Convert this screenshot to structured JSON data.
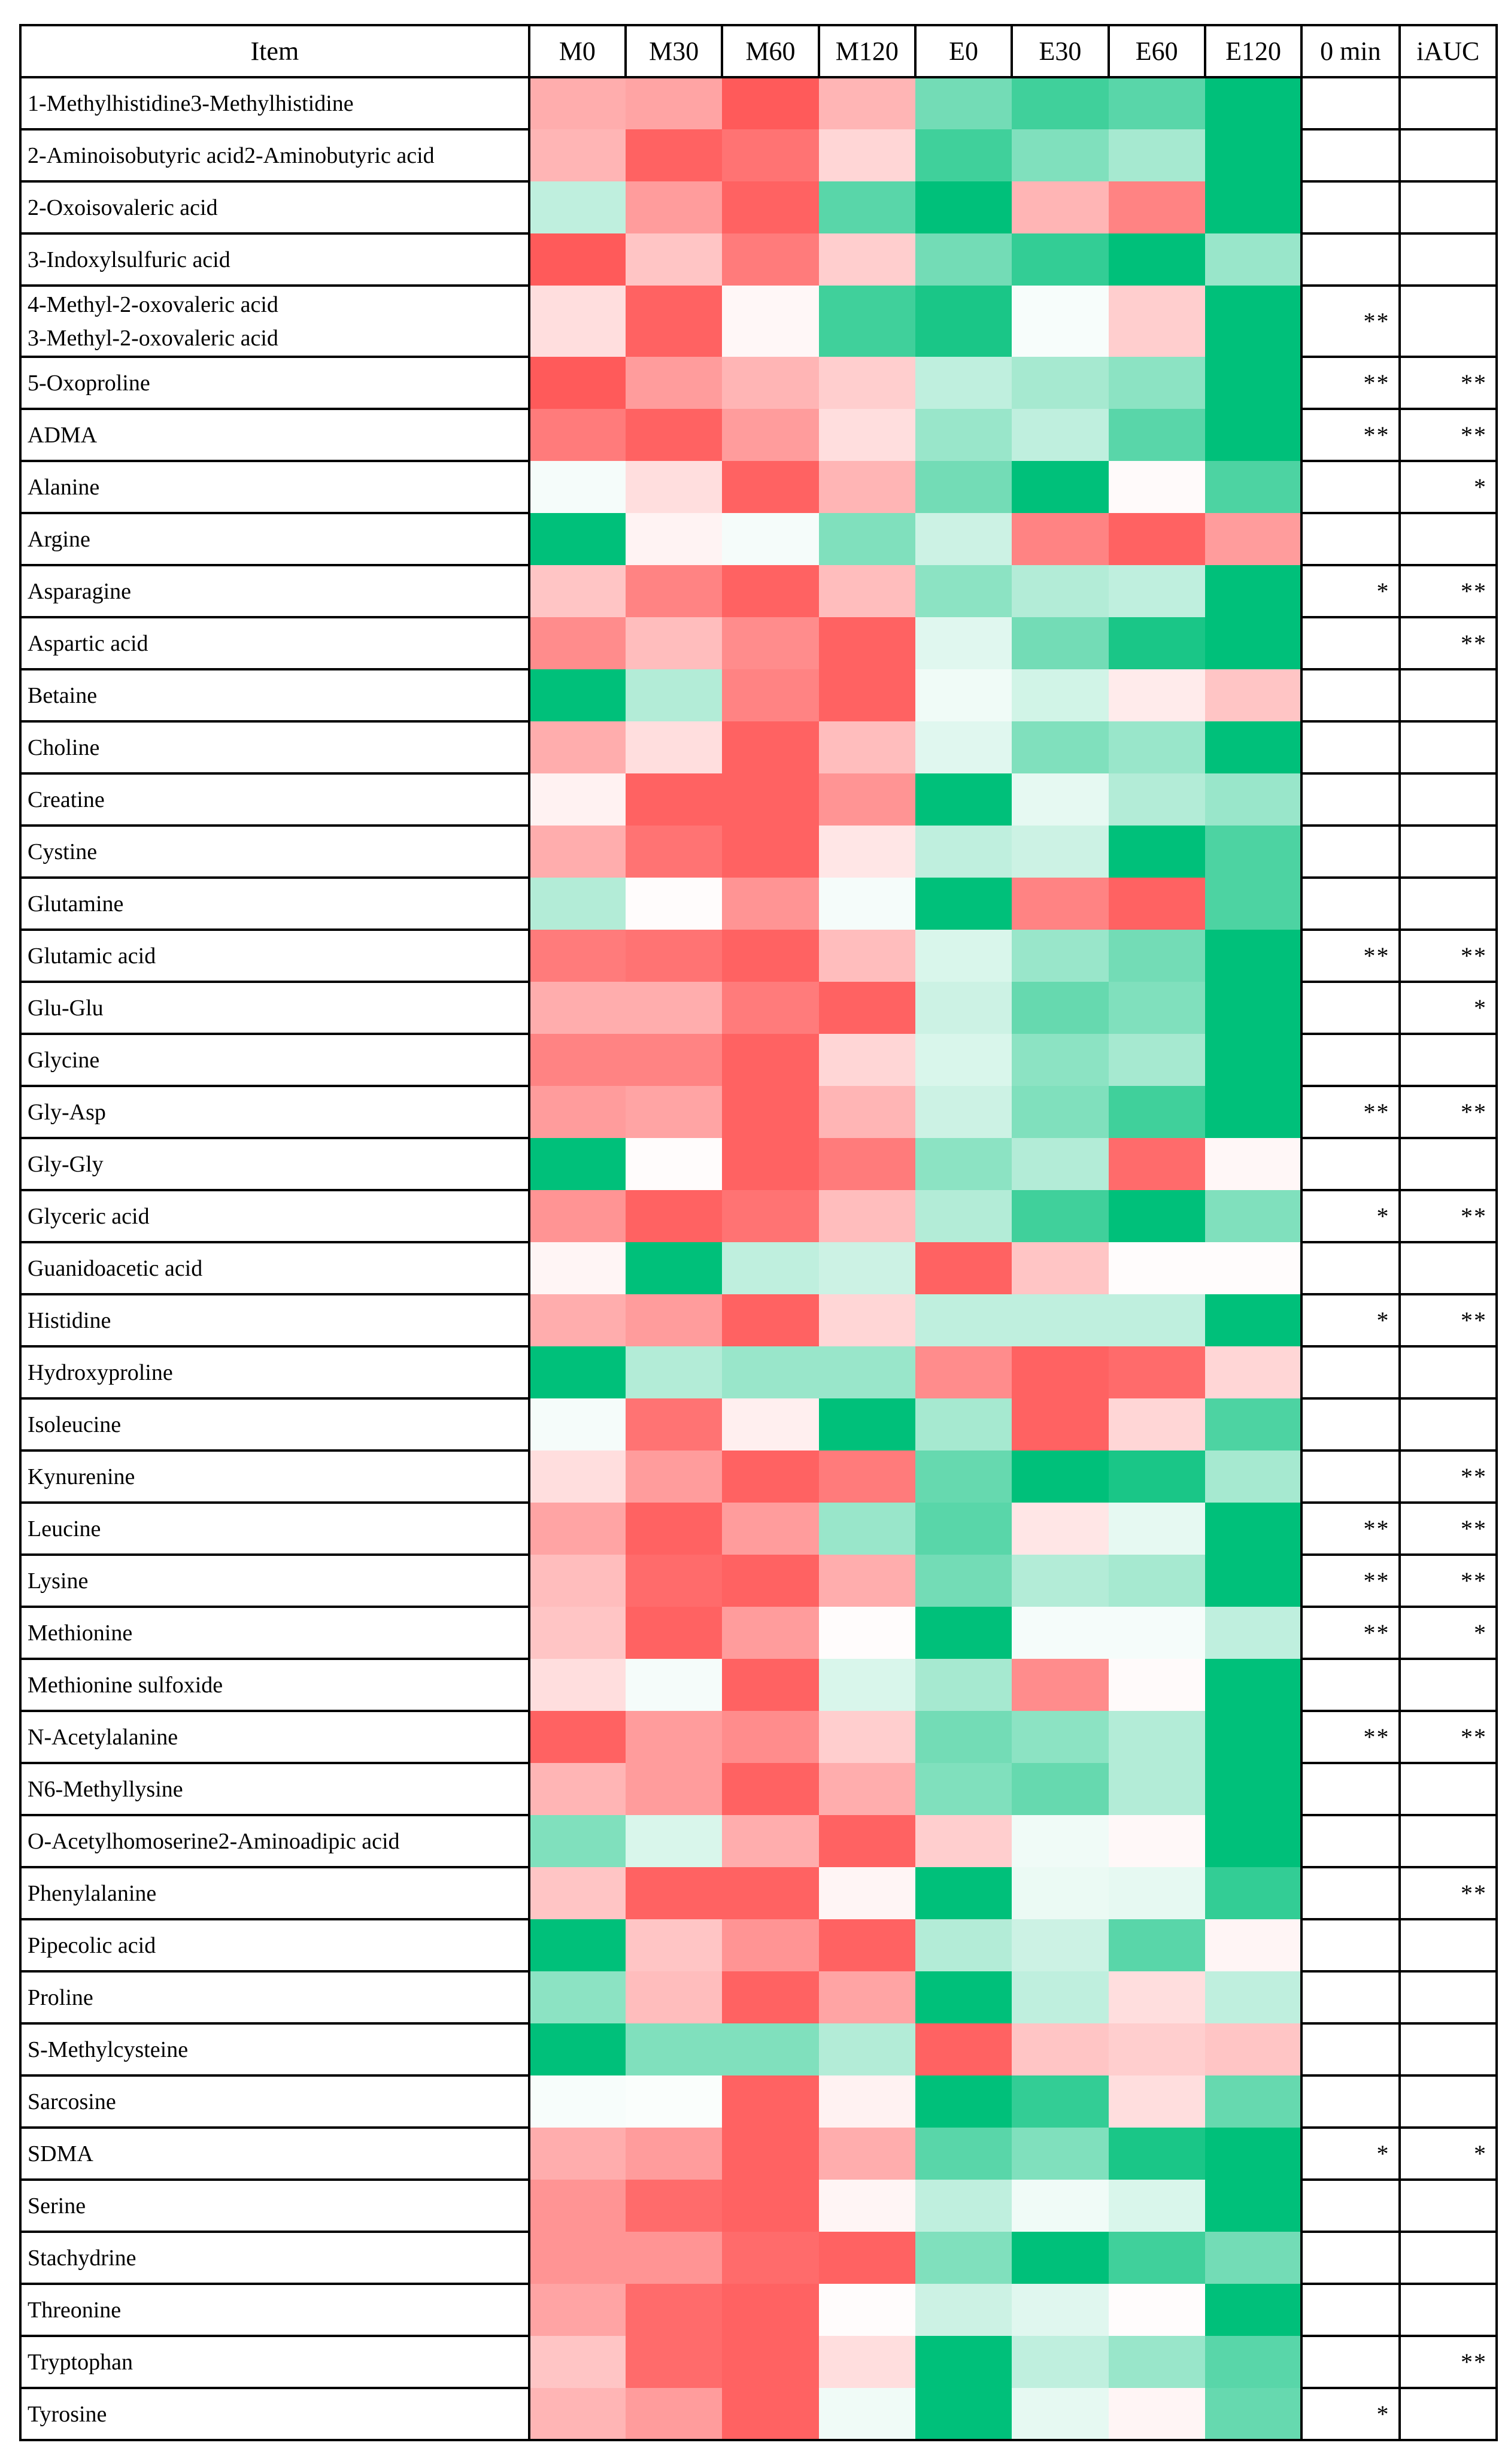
{
  "chart_data": {
    "type": "heatmap",
    "title": "",
    "columns": {
      "label_header": "Item",
      "value_columns": [
        "M0",
        "M30",
        "M60",
        "M120",
        "E0",
        "E30",
        "E60",
        "E120"
      ],
      "significance_columns": [
        "0 min",
        "iAUC"
      ]
    },
    "color_scale": {
      "negative_color": "#ff5a5a",
      "neutral_color": "#ffffff",
      "positive_color": "#00c07a",
      "range": [
        -1,
        1
      ],
      "note": "relative z-score, red = lower, green = higher (estimated from cell color)"
    },
    "rows": [
      {
        "label": "1-Methylhistidine3-Methylhistidine",
        "values": [
          -0.5,
          -0.55,
          -1.0,
          -0.45,
          0.55,
          0.75,
          0.65,
          1.0
        ],
        "sig_0min": "",
        "sig_iauc": ""
      },
      {
        "label": "2-Aminoisobutyric acid2-Aminobutyric acid",
        "values": [
          -0.45,
          -0.95,
          -0.85,
          -0.25,
          0.75,
          0.5,
          0.35,
          1.0
        ],
        "sig_0min": "",
        "sig_iauc": ""
      },
      {
        "label": "2-Oxoisovaleric acid",
        "values": [
          0.25,
          -0.6,
          -0.95,
          0.65,
          1.0,
          -0.45,
          -0.75,
          1.0
        ],
        "sig_0min": "",
        "sig_iauc": ""
      },
      {
        "label": "3-Indoxylsulfuric acid",
        "values": [
          -1.0,
          -0.35,
          -0.8,
          -0.3,
          0.55,
          0.8,
          1.0,
          0.4
        ],
        "sig_0min": "",
        "sig_iauc": ""
      },
      {
        "label": "4-Methyl-2-oxovaleric acid\n3-Methyl-2-oxovaleric acid",
        "values": [
          -0.2,
          -0.95,
          -0.05,
          0.75,
          0.9,
          0.03,
          -0.3,
          1.0
        ],
        "sig_0min": "**",
        "sig_iauc": "",
        "two_line": true
      },
      {
        "label": "5-Oxoproline",
        "values": [
          -1.0,
          -0.6,
          -0.45,
          -0.3,
          0.25,
          0.35,
          0.45,
          1.0
        ],
        "sig_0min": "**",
        "sig_iauc": "**"
      },
      {
        "label": "ADMA",
        "values": [
          -0.8,
          -0.95,
          -0.6,
          -0.2,
          0.4,
          0.25,
          0.65,
          1.0
        ],
        "sig_0min": "**",
        "sig_iauc": "**"
      },
      {
        "label": "Alanine",
        "values": [
          0.04,
          -0.2,
          -0.95,
          -0.45,
          0.55,
          1.0,
          -0.03,
          0.7
        ],
        "sig_0min": "",
        "sig_iauc": "*"
      },
      {
        "label": "Argine",
        "values": [
          1.0,
          -0.07,
          0.04,
          0.5,
          0.2,
          -0.75,
          -0.95,
          -0.6
        ],
        "sig_0min": "",
        "sig_iauc": ""
      },
      {
        "label": "Asparagine",
        "values": [
          -0.35,
          -0.75,
          -0.95,
          -0.4,
          0.45,
          0.3,
          0.25,
          1.0
        ],
        "sig_0min": "*",
        "sig_iauc": "**"
      },
      {
        "label": "Aspartic acid",
        "values": [
          -0.7,
          -0.4,
          -0.7,
          -0.95,
          0.12,
          0.55,
          0.9,
          1.0
        ],
        "sig_0min": "",
        "sig_iauc": "**"
      },
      {
        "label": "Betaine",
        "values": [
          1.0,
          0.3,
          -0.75,
          -0.95,
          0.06,
          0.18,
          -0.12,
          -0.35
        ],
        "sig_0min": "",
        "sig_iauc": ""
      },
      {
        "label": "Choline",
        "values": [
          -0.5,
          -0.2,
          -0.95,
          -0.4,
          0.12,
          0.5,
          0.4,
          1.0
        ],
        "sig_0min": "",
        "sig_iauc": ""
      },
      {
        "label": "Creatine",
        "values": [
          -0.08,
          -0.95,
          -0.95,
          -0.65,
          1.0,
          0.1,
          0.3,
          0.4
        ],
        "sig_0min": "",
        "sig_iauc": ""
      },
      {
        "label": "Cystine",
        "values": [
          -0.5,
          -0.85,
          -0.95,
          -0.15,
          0.25,
          0.2,
          1.0,
          0.7
        ],
        "sig_0min": "",
        "sig_iauc": ""
      },
      {
        "label": "Glutamine",
        "values": [
          0.3,
          -0.02,
          -0.65,
          0.04,
          1.0,
          -0.75,
          -0.95,
          0.7
        ],
        "sig_0min": "",
        "sig_iauc": ""
      },
      {
        "label": "Glutamic acid",
        "values": [
          -0.8,
          -0.85,
          -0.95,
          -0.4,
          0.15,
          0.4,
          0.55,
          1.0
        ],
        "sig_0min": "**",
        "sig_iauc": "**"
      },
      {
        "label": "Glu-Glu",
        "values": [
          -0.5,
          -0.5,
          -0.8,
          -0.95,
          0.2,
          0.6,
          0.5,
          1.0
        ],
        "sig_0min": "",
        "sig_iauc": "*"
      },
      {
        "label": "Glycine",
        "values": [
          -0.75,
          -0.75,
          -0.95,
          -0.25,
          0.15,
          0.45,
          0.35,
          1.0
        ],
        "sig_0min": "",
        "sig_iauc": ""
      },
      {
        "label": "Gly-Asp",
        "values": [
          -0.6,
          -0.55,
          -0.95,
          -0.45,
          0.2,
          0.5,
          0.75,
          1.0
        ],
        "sig_0min": "**",
        "sig_iauc": "**"
      },
      {
        "label": "Gly-Gly",
        "values": [
          1.0,
          -0.02,
          -0.95,
          -0.8,
          0.45,
          0.3,
          -0.9,
          -0.05
        ],
        "sig_0min": "",
        "sig_iauc": ""
      },
      {
        "label": "Glyceric acid",
        "values": [
          -0.65,
          -0.95,
          -0.85,
          -0.4,
          0.3,
          0.75,
          1.0,
          0.5
        ],
        "sig_0min": "*",
        "sig_iauc": "**"
      },
      {
        "label": "Guanidoacetic acid",
        "values": [
          -0.06,
          1.0,
          0.25,
          0.2,
          -0.95,
          -0.35,
          -0.02,
          -0.02
        ],
        "sig_0min": "",
        "sig_iauc": ""
      },
      {
        "label": "Histidine",
        "values": [
          -0.5,
          -0.6,
          -0.95,
          -0.25,
          0.25,
          0.25,
          0.25,
          1.0
        ],
        "sig_0min": "*",
        "sig_iauc": "**"
      },
      {
        "label": "Hydroxyproline",
        "values": [
          1.0,
          0.3,
          0.4,
          0.4,
          -0.7,
          -0.95,
          -0.9,
          -0.25
        ],
        "sig_0min": "",
        "sig_iauc": ""
      },
      {
        "label": "Isoleucine",
        "values": [
          0.04,
          -0.85,
          -0.1,
          1.0,
          0.35,
          -0.95,
          -0.25,
          0.7
        ],
        "sig_0min": "",
        "sig_iauc": ""
      },
      {
        "label": "Kynurenine",
        "values": [
          -0.2,
          -0.6,
          -0.95,
          -0.8,
          0.6,
          1.0,
          0.9,
          0.35
        ],
        "sig_0min": "",
        "sig_iauc": "**"
      },
      {
        "label": "Leucine",
        "values": [
          -0.55,
          -0.95,
          -0.6,
          0.4,
          0.65,
          -0.15,
          0.1,
          1.0
        ],
        "sig_0min": "**",
        "sig_iauc": "**"
      },
      {
        "label": "Lysine",
        "values": [
          -0.4,
          -0.9,
          -0.95,
          -0.5,
          0.55,
          0.3,
          0.35,
          1.0
        ],
        "sig_0min": "**",
        "sig_iauc": "**"
      },
      {
        "label": "Methionine",
        "values": [
          -0.35,
          -0.95,
          -0.6,
          -0.02,
          1.0,
          0.04,
          0.04,
          0.25
        ],
        "sig_0min": "**",
        "sig_iauc": "*"
      },
      {
        "label": "Methionine sulfoxide",
        "values": [
          -0.2,
          0.04,
          -0.95,
          0.15,
          0.35,
          -0.7,
          -0.03,
          1.0
        ],
        "sig_0min": "",
        "sig_iauc": ""
      },
      {
        "label": "N-Acetylalanine",
        "values": [
          -0.95,
          -0.6,
          -0.7,
          -0.3,
          0.55,
          0.45,
          0.3,
          1.0
        ],
        "sig_0min": "**",
        "sig_iauc": "**"
      },
      {
        "label": "N6-Methyllysine",
        "values": [
          -0.45,
          -0.6,
          -0.95,
          -0.5,
          0.5,
          0.6,
          0.3,
          1.0
        ],
        "sig_0min": "",
        "sig_iauc": ""
      },
      {
        "label": "O-Acetylhomoserine2-Aminoadipic acid",
        "values": [
          0.5,
          0.15,
          -0.5,
          -0.95,
          -0.3,
          0.06,
          -0.04,
          1.0
        ],
        "sig_0min": "",
        "sig_iauc": ""
      },
      {
        "label": "Phenylalanine",
        "values": [
          -0.35,
          -0.95,
          -0.95,
          -0.06,
          1.0,
          0.08,
          0.1,
          0.8
        ],
        "sig_0min": "",
        "sig_iauc": "**"
      },
      {
        "label": "Pipecolic acid",
        "values": [
          1.0,
          -0.35,
          -0.65,
          -0.95,
          0.3,
          0.2,
          0.65,
          -0.06
        ],
        "sig_0min": "",
        "sig_iauc": ""
      },
      {
        "label": "Proline",
        "values": [
          0.45,
          -0.4,
          -0.95,
          -0.55,
          1.0,
          0.25,
          -0.2,
          0.25
        ],
        "sig_0min": "",
        "sig_iauc": ""
      },
      {
        "label": "S-Methylcysteine",
        "values": [
          1.0,
          0.5,
          0.5,
          0.3,
          -0.95,
          -0.35,
          -0.3,
          -0.35
        ],
        "sig_0min": "",
        "sig_iauc": ""
      },
      {
        "label": "Sarcosine",
        "values": [
          0.03,
          0.02,
          -0.95,
          -0.08,
          1.0,
          0.8,
          -0.2,
          0.6
        ],
        "sig_0min": "",
        "sig_iauc": ""
      },
      {
        "label": "SDMA",
        "values": [
          -0.5,
          -0.6,
          -0.95,
          -0.5,
          0.65,
          0.5,
          0.9,
          1.0
        ],
        "sig_0min": "*",
        "sig_iauc": "*"
      },
      {
        "label": "Serine",
        "values": [
          -0.65,
          -0.9,
          -0.95,
          -0.06,
          0.25,
          0.06,
          0.15,
          1.0
        ],
        "sig_0min": "",
        "sig_iauc": ""
      },
      {
        "label": "Stachydrine",
        "values": [
          -0.65,
          -0.65,
          -0.9,
          -0.95,
          0.5,
          1.0,
          0.75,
          0.55
        ],
        "sig_0min": "",
        "sig_iauc": ""
      },
      {
        "label": "Threonine",
        "values": [
          -0.55,
          -0.9,
          -0.95,
          -0.02,
          0.2,
          0.12,
          -0.02,
          1.0
        ],
        "sig_0min": "",
        "sig_iauc": ""
      },
      {
        "label": "Tryptophan",
        "values": [
          -0.35,
          -0.9,
          -0.95,
          -0.2,
          1.0,
          0.25,
          0.4,
          0.65
        ],
        "sig_0min": "",
        "sig_iauc": "**"
      },
      {
        "label": "Tyrosine",
        "values": [
          -0.45,
          -0.6,
          -0.95,
          0.06,
          1.0,
          0.1,
          -0.06,
          0.6
        ],
        "sig_0min": "*",
        "sig_iauc": ""
      }
    ]
  }
}
